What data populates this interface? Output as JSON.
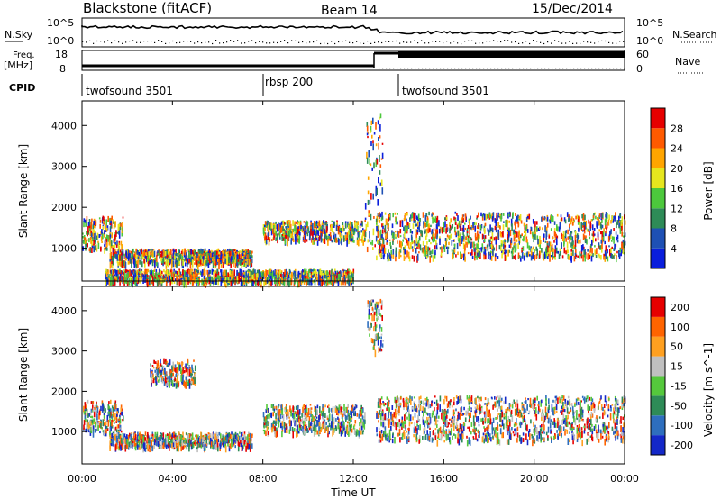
{
  "header": {
    "station": "Blackstone (fitACF)",
    "beam": "Beam 14",
    "date": "15/Dec/2014"
  },
  "noise_panel": {
    "left_label": "N.Sky",
    "right_label": "N.Search",
    "left_ticks": [
      "10^5",
      "10^0"
    ],
    "right_ticks": [
      "10^5",
      "10^0"
    ]
  },
  "freq_panel": {
    "left_label_line1": "Freq.",
    "left_label_line2": "[MHz]",
    "right_label": "Nave",
    "left_ticks": [
      "18",
      "8"
    ],
    "right_ticks": [
      "60",
      "0"
    ]
  },
  "cpid": {
    "label": "CPID",
    "segments": [
      {
        "name": "twofsound 3501",
        "start_hour": 0,
        "end_hour": 8
      },
      {
        "name": "rbsp 200",
        "start_hour": 8,
        "end_hour": 14
      },
      {
        "name": "twofsound 3501",
        "start_hour": 14,
        "end_hour": 24
      }
    ]
  },
  "x_axis": {
    "label": "Time UT",
    "range_hours": [
      0,
      24
    ],
    "ticks": [
      "00:00",
      "04:00",
      "08:00",
      "12:00",
      "16:00",
      "20:00",
      "00:00"
    ]
  },
  "chart_data": [
    {
      "type": "heatmap",
      "parameter": "power",
      "ylabel": "Slant Range [km]",
      "yticks": [
        "1000",
        "2000",
        "3000",
        "4000"
      ],
      "ylim": [
        200,
        4600
      ],
      "colorbar": {
        "label": "Power [dB]",
        "ticks": [
          "4",
          "8",
          "12",
          "16",
          "20",
          "24",
          "28"
        ],
        "colors": [
          "#0a1edc",
          "#1e50b4",
          "#2e8b57",
          "#4cc83c",
          "#e6e61e",
          "#ffa500",
          "#ff5a00",
          "#e60000"
        ]
      },
      "features": [
        {
          "t0": 0.0,
          "t1": 1.8,
          "r0": 1000,
          "r1": 1800
        },
        {
          "t0": 1.2,
          "t1": 7.5,
          "r0": 650,
          "r1": 1000
        },
        {
          "t0": 5.0,
          "t1": 7.5,
          "r0": 700,
          "r1": 950
        },
        {
          "t0": 1.0,
          "t1": 12.0,
          "r0": 200,
          "r1": 500
        },
        {
          "t0": 8.0,
          "t1": 12.5,
          "r0": 1200,
          "r1": 1700
        },
        {
          "t0": 13.0,
          "t1": 24.0,
          "r0": 800,
          "r1": 1900
        },
        {
          "t0": 12.5,
          "t1": 13.3,
          "r0": 1000,
          "r1": 4300
        }
      ]
    },
    {
      "type": "heatmap",
      "parameter": "velocity",
      "ylabel": "Slant Range [km]",
      "yticks": [
        "1000",
        "2000",
        "3000",
        "4000"
      ],
      "ylim": [
        200,
        4600
      ],
      "colorbar": {
        "label": "Velocity [m s^-1]",
        "ticks": [
          "200",
          "100",
          "50",
          "15",
          "-15",
          "-50",
          "-100",
          "-200"
        ],
        "colors": [
          "#1428c8",
          "#2e6ebe",
          "#2e8b57",
          "#55c83c",
          "#c0c0c0",
          "#ffa020",
          "#ff6400",
          "#e60000"
        ]
      },
      "features": [
        {
          "t0": 0.0,
          "t1": 1.8,
          "r0": 1000,
          "r1": 1800
        },
        {
          "t0": 1.2,
          "t1": 7.5,
          "r0": 650,
          "r1": 1000
        },
        {
          "t0": 8.0,
          "t1": 12.5,
          "r0": 1000,
          "r1": 1700
        },
        {
          "t0": 13.0,
          "t1": 24.0,
          "r0": 800,
          "r1": 1900
        },
        {
          "t0": 12.6,
          "t1": 13.3,
          "r0": 3000,
          "r1": 4300
        },
        {
          "t0": 3.0,
          "t1": 5.0,
          "r0": 2200,
          "r1": 2800
        }
      ]
    }
  ]
}
